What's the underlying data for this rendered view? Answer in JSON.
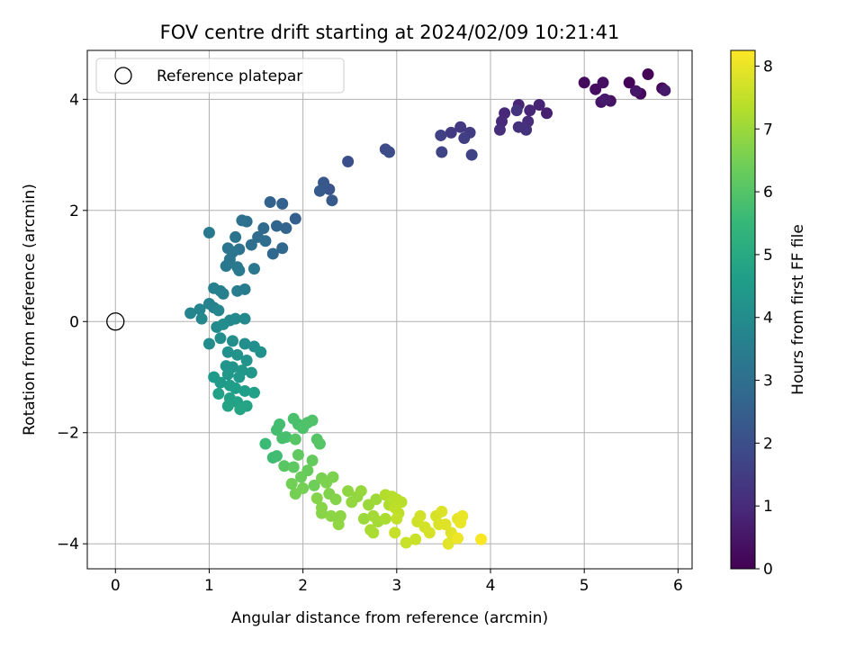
{
  "chart_data": {
    "type": "scatter",
    "title": "FOV centre drift starting at 2024/02/09 10:21:41",
    "xlabel": "Angular distance from reference (arcmin)",
    "ylabel": "Rotation from reference (arcmin)",
    "xlim": [
      -0.3,
      6.15
    ],
    "ylim": [
      -4.45,
      4.88
    ],
    "xticks": [
      0,
      1,
      2,
      3,
      4,
      5,
      6
    ],
    "yticks": [
      -4,
      -2,
      0,
      2,
      4
    ],
    "xtick_labels": [
      "0",
      "1",
      "2",
      "3",
      "4",
      "5",
      "6"
    ],
    "ytick_labels": [
      "−4",
      "−2",
      "0",
      "2",
      "4"
    ],
    "grid": true,
    "legend": {
      "placement": "top-left",
      "entries": [
        "Reference platepar"
      ]
    },
    "reference_point": {
      "x": 0,
      "y": 0,
      "label": "Reference platepar"
    },
    "colorbar": {
      "label": "Hours from first FF file",
      "colormap": "viridis",
      "range": [
        0,
        8.25
      ],
      "ticks": [
        0,
        1,
        2,
        3,
        4,
        5,
        6,
        7,
        8
      ],
      "tick_labels": [
        "0",
        "1",
        "2",
        "3",
        "4",
        "5",
        "6",
        "7",
        "8"
      ],
      "colors": [
        "#440154",
        "#482878",
        "#3e4989",
        "#31688e",
        "#26828e",
        "#1f9e89",
        "#35b779",
        "#6ece58",
        "#b5de2b",
        "#fde725"
      ]
    },
    "series": [
      {
        "values_format": "[x_arcmin, y_arcmin, hours]",
        "points": [
          [
            5.68,
            4.45,
            0.05
          ],
          [
            5.48,
            4.3,
            0.1
          ],
          [
            5.83,
            4.2,
            0.15
          ],
          [
            5.6,
            4.1,
            0.2
          ],
          [
            5.0,
            4.3,
            0.25
          ],
          [
            5.12,
            4.18,
            0.3
          ],
          [
            5.2,
            4.3,
            0.35
          ],
          [
            5.28,
            3.97,
            0.4
          ],
          [
            5.18,
            3.95,
            0.45
          ],
          [
            5.55,
            4.15,
            0.5
          ],
          [
            5.86,
            4.16,
            0.55
          ],
          [
            5.22,
            4.0,
            0.6
          ],
          [
            4.6,
            3.75,
            0.75
          ],
          [
            4.52,
            3.9,
            0.8
          ],
          [
            4.3,
            3.9,
            0.85
          ],
          [
            4.42,
            3.8,
            0.9
          ],
          [
            4.15,
            3.75,
            0.95
          ],
          [
            4.12,
            3.6,
            1.0
          ],
          [
            4.4,
            3.6,
            1.05
          ],
          [
            4.1,
            3.45,
            1.1
          ],
          [
            4.3,
            3.5,
            1.15
          ],
          [
            4.38,
            3.45,
            1.2
          ],
          [
            4.28,
            3.8,
            1.25
          ],
          [
            3.68,
            3.5,
            1.4
          ],
          [
            3.58,
            3.4,
            1.45
          ],
          [
            3.78,
            3.4,
            1.5
          ],
          [
            3.72,
            3.3,
            1.55
          ],
          [
            3.47,
            3.35,
            1.6
          ],
          [
            3.8,
            3.0,
            1.65
          ],
          [
            3.48,
            3.05,
            1.7
          ],
          [
            2.88,
            3.1,
            1.9
          ],
          [
            2.92,
            3.05,
            1.95
          ],
          [
            2.48,
            2.88,
            2.05
          ],
          [
            2.28,
            2.38,
            2.2
          ],
          [
            2.22,
            2.5,
            2.25
          ],
          [
            2.31,
            2.18,
            2.3
          ],
          [
            2.18,
            2.35,
            2.35
          ],
          [
            1.92,
            1.85,
            2.5
          ],
          [
            1.78,
            2.12,
            2.55
          ],
          [
            1.65,
            2.15,
            2.6
          ],
          [
            1.72,
            1.72,
            2.65
          ],
          [
            1.82,
            1.68,
            2.7
          ],
          [
            1.78,
            1.32,
            2.75
          ],
          [
            1.68,
            1.22,
            2.8
          ],
          [
            1.58,
            1.68,
            2.85
          ],
          [
            1.52,
            1.52,
            2.9
          ],
          [
            1.6,
            1.45,
            2.95
          ],
          [
            1.45,
            1.38,
            3.0
          ],
          [
            1.4,
            1.8,
            3.0
          ],
          [
            1.35,
            1.82,
            3.05
          ],
          [
            1.32,
            1.3,
            3.1
          ],
          [
            1.28,
            1.52,
            3.15
          ],
          [
            1.22,
            1.12,
            3.2
          ],
          [
            1.2,
            1.32,
            3.25
          ],
          [
            1.25,
            1.25,
            3.25
          ],
          [
            1.18,
            1.0,
            3.3
          ],
          [
            1.3,
            0.98,
            3.3
          ],
          [
            1.48,
            0.95,
            3.35
          ],
          [
            1.32,
            0.92,
            3.4
          ],
          [
            1.0,
            1.6,
            3.4
          ],
          [
            1.38,
            0.58,
            3.45
          ],
          [
            1.3,
            0.55,
            3.5
          ],
          [
            1.12,
            0.55,
            3.55
          ],
          [
            1.05,
            0.6,
            3.6
          ],
          [
            1.15,
            0.5,
            3.6
          ],
          [
            1.0,
            0.32,
            3.65
          ],
          [
            1.05,
            0.25,
            3.7
          ],
          [
            0.9,
            0.22,
            3.75
          ],
          [
            0.8,
            0.15,
            3.75
          ],
          [
            1.1,
            0.2,
            3.8
          ],
          [
            0.92,
            0.05,
            3.85
          ],
          [
            1.28,
            0.05,
            3.85
          ],
          [
            1.38,
            0.05,
            3.9
          ],
          [
            1.22,
            0.02,
            3.9
          ],
          [
            1.08,
            -0.1,
            3.95
          ],
          [
            1.15,
            -0.05,
            4.0
          ],
          [
            1.0,
            -0.4,
            4.0
          ],
          [
            1.12,
            -0.3,
            4.05
          ],
          [
            1.25,
            -0.35,
            4.05
          ],
          [
            1.38,
            -0.4,
            4.1
          ],
          [
            1.48,
            -0.45,
            4.1
          ],
          [
            1.55,
            -0.55,
            4.15
          ],
          [
            1.2,
            -0.55,
            4.15
          ],
          [
            1.3,
            -0.6,
            4.2
          ],
          [
            1.4,
            -0.7,
            4.25
          ],
          [
            1.18,
            -0.8,
            4.3
          ],
          [
            1.25,
            -0.82,
            4.3
          ],
          [
            1.35,
            -0.88,
            4.35
          ],
          [
            1.45,
            -0.92,
            4.35
          ],
          [
            1.2,
            -0.95,
            4.4
          ],
          [
            1.32,
            -1.0,
            4.4
          ],
          [
            1.05,
            -1.0,
            4.45
          ],
          [
            1.12,
            -1.1,
            4.5
          ],
          [
            1.22,
            -1.15,
            4.55
          ],
          [
            1.28,
            -1.2,
            4.6
          ],
          [
            1.38,
            -1.25,
            4.6
          ],
          [
            1.48,
            -1.28,
            4.65
          ],
          [
            1.1,
            -1.3,
            4.7
          ],
          [
            1.22,
            -1.38,
            4.7
          ],
          [
            1.3,
            -1.45,
            4.75
          ],
          [
            1.2,
            -1.52,
            4.8
          ],
          [
            1.4,
            -1.52,
            4.8
          ],
          [
            1.33,
            -1.58,
            4.85
          ],
          [
            1.6,
            -2.2,
            5.6
          ],
          [
            1.68,
            -2.45,
            5.65
          ],
          [
            1.72,
            -2.42,
            5.7
          ],
          [
            1.75,
            -1.85,
            5.75
          ],
          [
            1.72,
            -1.95,
            5.75
          ],
          [
            1.82,
            -2.08,
            5.8
          ],
          [
            1.78,
            -2.1,
            5.8
          ],
          [
            1.9,
            -1.75,
            5.85
          ],
          [
            1.95,
            -1.85,
            5.85
          ],
          [
            2.05,
            -1.82,
            5.9
          ],
          [
            2.0,
            -1.92,
            5.9
          ],
          [
            2.1,
            -1.78,
            5.95
          ],
          [
            2.15,
            -2.12,
            6.0
          ],
          [
            2.18,
            -2.2,
            6.05
          ],
          [
            1.92,
            -2.12,
            6.05
          ],
          [
            1.8,
            -2.6,
            6.1
          ],
          [
            1.9,
            -2.62,
            6.15
          ],
          [
            1.95,
            -2.4,
            6.2
          ],
          [
            2.1,
            -2.5,
            6.25
          ],
          [
            2.05,
            -2.68,
            6.3
          ],
          [
            1.98,
            -2.8,
            6.35
          ],
          [
            2.12,
            -2.95,
            6.4
          ],
          [
            1.88,
            -2.92,
            6.45
          ],
          [
            1.92,
            -3.1,
            6.5
          ],
          [
            2.0,
            -3.0,
            6.5
          ],
          [
            2.2,
            -2.82,
            6.55
          ],
          [
            2.25,
            -2.9,
            6.6
          ],
          [
            2.32,
            -2.8,
            6.6
          ],
          [
            2.28,
            -3.1,
            6.65
          ],
          [
            2.15,
            -3.18,
            6.7
          ],
          [
            2.35,
            -3.2,
            6.7
          ],
          [
            2.2,
            -3.35,
            6.75
          ],
          [
            2.2,
            -3.45,
            6.75
          ],
          [
            2.3,
            -3.5,
            6.8
          ],
          [
            2.4,
            -3.5,
            6.8
          ],
          [
            2.38,
            -3.65,
            6.85
          ],
          [
            2.48,
            -3.05,
            6.85
          ],
          [
            2.52,
            -3.25,
            6.9
          ],
          [
            2.58,
            -3.15,
            6.9
          ],
          [
            2.62,
            -3.05,
            6.95
          ],
          [
            2.7,
            -3.3,
            7.0
          ],
          [
            2.65,
            -3.55,
            7.0
          ],
          [
            2.78,
            -3.2,
            7.05
          ],
          [
            2.75,
            -3.5,
            7.1
          ],
          [
            2.8,
            -3.6,
            7.1
          ],
          [
            2.72,
            -3.75,
            7.15
          ],
          [
            2.75,
            -3.8,
            7.2
          ],
          [
            2.88,
            -3.55,
            7.2
          ],
          [
            2.92,
            -3.3,
            7.25
          ],
          [
            2.88,
            -3.12,
            7.3
          ],
          [
            2.95,
            -3.15,
            7.35
          ],
          [
            3.0,
            -3.2,
            7.35
          ],
          [
            3.05,
            -3.25,
            7.4
          ],
          [
            2.98,
            -3.35,
            7.45
          ],
          [
            3.02,
            -3.45,
            7.45
          ],
          [
            3.0,
            -3.55,
            7.5
          ],
          [
            2.98,
            -3.8,
            7.55
          ],
          [
            3.1,
            -3.98,
            7.6
          ],
          [
            3.2,
            -3.92,
            7.6
          ],
          [
            3.22,
            -3.6,
            7.65
          ],
          [
            3.25,
            -3.5,
            7.7
          ],
          [
            3.3,
            -3.7,
            7.7
          ],
          [
            3.35,
            -3.8,
            7.75
          ],
          [
            3.42,
            -3.5,
            7.75
          ],
          [
            3.45,
            -3.65,
            7.8
          ],
          [
            3.48,
            -3.42,
            7.8
          ],
          [
            3.52,
            -3.65,
            7.85
          ],
          [
            3.58,
            -3.8,
            7.85
          ],
          [
            3.6,
            -3.88,
            7.9
          ],
          [
            3.55,
            -4.0,
            7.9
          ],
          [
            3.65,
            -3.55,
            7.95
          ],
          [
            3.7,
            -3.5,
            8.0
          ],
          [
            3.68,
            -3.62,
            8.0
          ],
          [
            3.65,
            -3.9,
            8.05
          ],
          [
            3.9,
            -3.92,
            8.2
          ]
        ]
      }
    ]
  }
}
